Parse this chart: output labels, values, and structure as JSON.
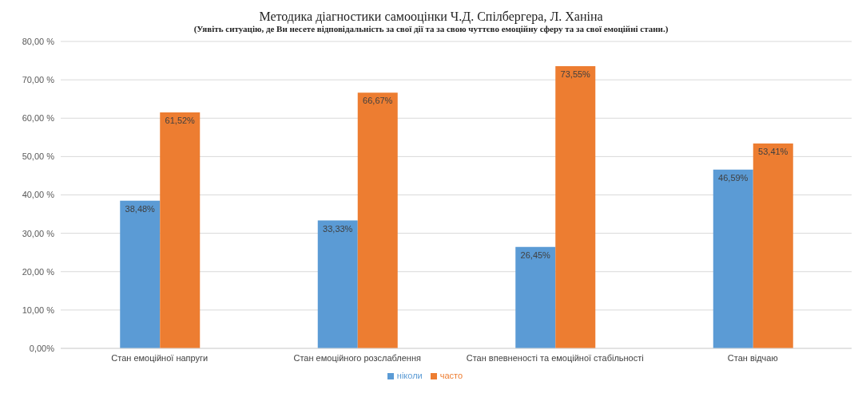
{
  "chart_data": {
    "type": "bar",
    "title": "Методика діагностики самооцінки Ч.Д. Спілбергера, Л. Ханіна",
    "subtitle": "(Уявіть ситуацію, де Ви несете відповідальність за свої дії та за свою чуттєво емоційну сферу та за свої емоційні стани.)",
    "categories": [
      "Стан емоційної напруги",
      "Стан емоційного розслаблення",
      "Стан впевненості та емоційної стабільності",
      "Стан відчаю"
    ],
    "series": [
      {
        "name": "ніколи",
        "color": "#5b9bd5",
        "values": [
          38.48,
          33.33,
          26.45,
          46.59
        ],
        "value_labels": [
          "38,48%",
          "33,33%",
          "26,45%",
          "46,59%"
        ]
      },
      {
        "name": "часто",
        "color": "#ed7d31",
        "values": [
          61.52,
          66.67,
          73.55,
          53.41
        ],
        "value_labels": [
          "61,52%",
          "66,67%",
          "73,55%",
          "53,41%"
        ]
      }
    ],
    "ylim": [
      0,
      80
    ],
    "yticks": [
      {
        "value": 0,
        "label": "0,00%"
      },
      {
        "value": 10,
        "label": "10,00 %"
      },
      {
        "value": 20,
        "label": "20,00 %"
      },
      {
        "value": 30,
        "label": "30,00 %"
      },
      {
        "value": 40,
        "label": "40,00 %"
      },
      {
        "value": 50,
        "label": "50,00 %"
      },
      {
        "value": 60,
        "label": "60,00 %"
      },
      {
        "value": 70,
        "label": "70,00 %"
      },
      {
        "value": 80,
        "label": "80,00 %"
      }
    ],
    "grid": "y",
    "legend": "bottom"
  }
}
